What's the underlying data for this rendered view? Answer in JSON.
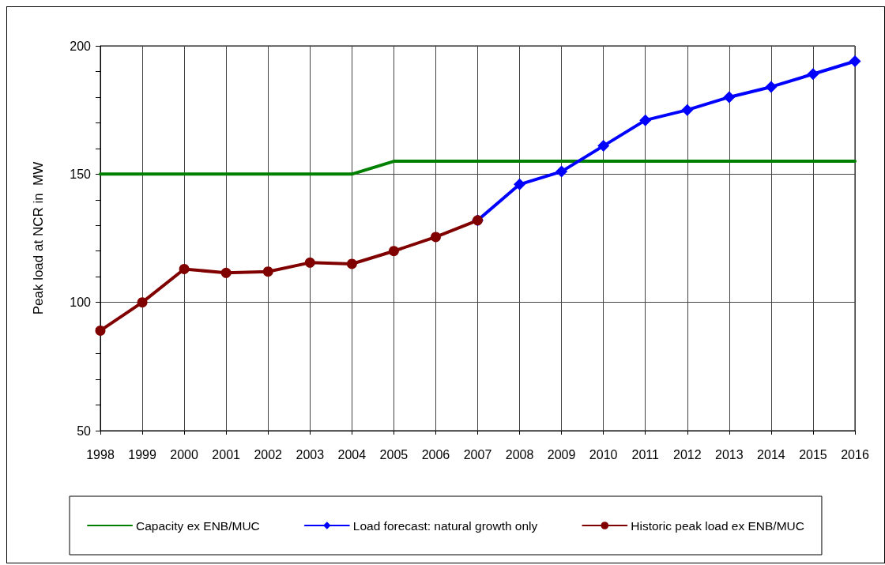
{
  "chart_data": {
    "type": "line",
    "ylabel": "Peak load at NCR in  MW",
    "categories": [
      "1998",
      "1999",
      "2000",
      "2001",
      "2002",
      "2003",
      "2004",
      "2005",
      "2006",
      "2007",
      "2008",
      "2009",
      "2010",
      "2011",
      "2012",
      "2013",
      "2014",
      "2015",
      "2016"
    ],
    "ylim": [
      50,
      200
    ],
    "yticks": [
      50,
      {
        "value": 60,
        "label": null
      },
      {
        "value": 70,
        "label": null
      },
      {
        "value": 80,
        "label": null
      },
      {
        "value": 90,
        "label": null
      },
      100,
      {
        "value": 110,
        "label": null
      },
      {
        "value": 120,
        "label": null
      },
      {
        "value": 130,
        "label": null
      },
      {
        "value": 140,
        "label": null
      },
      150,
      {
        "value": 160,
        "label": null
      },
      {
        "value": 170,
        "label": null
      },
      {
        "value": 180,
        "label": null
      },
      {
        "value": 190,
        "label": null
      },
      200
    ],
    "grid": true,
    "legend": "bottom",
    "line_style": "solid",
    "series": [
      {
        "name": "Capacity ex ENB/MUC",
        "color": "#008000",
        "marker": "none",
        "values": [
          150,
          150,
          150,
          150,
          150,
          150,
          150,
          155,
          155,
          155,
          155,
          155,
          155,
          155,
          155,
          155,
          155,
          155,
          155
        ]
      },
      {
        "name": "Load forecast: natural growth only",
        "color": "#0000ff",
        "marker": "diamond",
        "values": [
          null,
          null,
          null,
          null,
          null,
          null,
          null,
          null,
          null,
          132,
          146,
          151,
          161,
          171,
          175,
          180,
          184,
          189,
          194
        ]
      },
      {
        "name": "Historic peak load ex ENB/MUC",
        "color": "#800000",
        "marker": "circle",
        "values": [
          89,
          100,
          113,
          111.5,
          112,
          115.5,
          115,
          120,
          125.5,
          132,
          null,
          null,
          null,
          null,
          null,
          null,
          null,
          null,
          null
        ]
      }
    ]
  }
}
